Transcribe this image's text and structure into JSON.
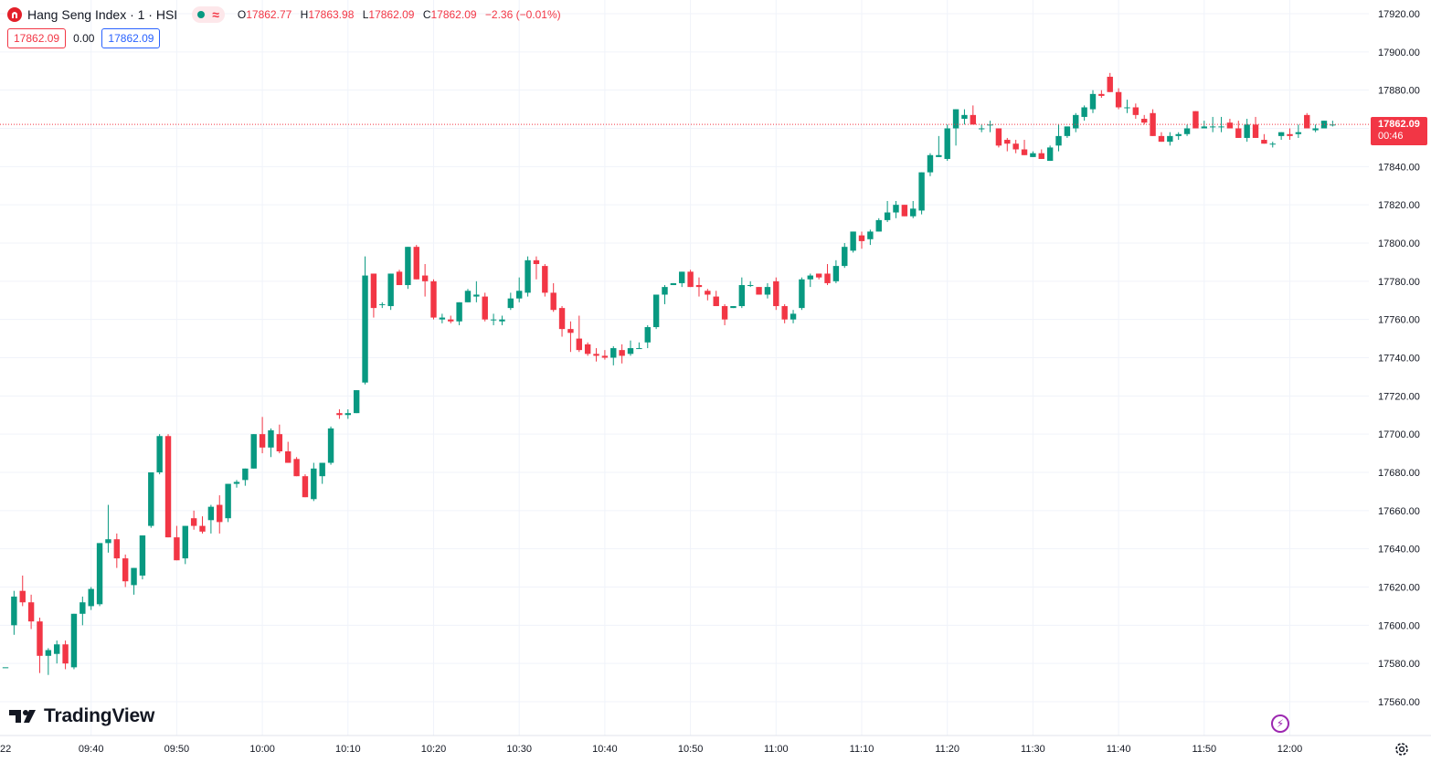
{
  "header": {
    "symbol_title": "Hang Seng Index · 1 · HSI",
    "ohlc": {
      "open_label": "O",
      "open": "17862.77",
      "high_label": "H",
      "high": "17863.98",
      "low_label": "L",
      "low": "17862.09",
      "close_label": "C",
      "close": "17862.09",
      "change": "−2.36 (−0.01%)"
    },
    "status_icon": "wave-icon"
  },
  "order_row": {
    "sell_price": "17862.09",
    "spread": "0.00",
    "buy_price": "17862.09"
  },
  "price_tag": {
    "price": "17862.09",
    "countdown": "00:46"
  },
  "branding": {
    "logo_text": "TradingView"
  },
  "colors": {
    "up": "#089981",
    "down": "#f23645",
    "grid": "#f0f3fa",
    "text": "#131722",
    "buy": "#2962ff"
  },
  "chart_data": {
    "type": "candlestick",
    "title": "Hang Seng Index · 1 · HSI",
    "interval": "1 minute",
    "y_ticks": [
      17560,
      17580,
      17600,
      17620,
      17640,
      17660,
      17680,
      17700,
      17720,
      17740,
      17760,
      17780,
      17800,
      17820,
      17840,
      17860,
      17880,
      17900,
      17920
    ],
    "y_tick_labels": [
      "17560.00",
      "17580.00",
      "17600.00",
      "17620.00",
      "17640.00",
      "17660.00",
      "17680.00",
      "17700.00",
      "17720.00",
      "17740.00",
      "17760.00",
      "17780.00",
      "17800.00",
      "17820.00",
      "17840.00",
      "17860.00",
      "17880.00",
      "17900.00",
      "17920.00"
    ],
    "ylim": [
      17550,
      17928
    ],
    "x_ticks": [
      "09:40",
      "09:50",
      "10:00",
      "10:10",
      "10:20",
      "10:30",
      "10:40",
      "10:50",
      "11:00",
      "11:10",
      "11:20",
      "11:30",
      "11:40",
      "11:50",
      "12:00"
    ],
    "first_label": "22",
    "last_price": 17862.09,
    "candles": [
      [
        17578,
        17578,
        17578,
        17578
      ],
      [
        17600,
        17618,
        17595,
        17615
      ],
      [
        17618,
        17626,
        17610,
        17612
      ],
      [
        17612,
        17616,
        17598,
        17602
      ],
      [
        17602,
        17604,
        17575,
        17584
      ],
      [
        17584,
        17588,
        17574,
        17587
      ],
      [
        17585,
        17592,
        17580,
        17590
      ],
      [
        17590,
        17592,
        17577,
        17580
      ],
      [
        17578,
        17606,
        17577,
        17606
      ],
      [
        17606,
        17615,
        17600,
        17612
      ],
      [
        17610,
        17620,
        17608,
        17619
      ],
      [
        17611,
        17643,
        17610,
        17643
      ],
      [
        17643,
        17663,
        17638,
        17645
      ],
      [
        17645,
        17648,
        17630,
        17635
      ],
      [
        17635,
        17637,
        17620,
        17623
      ],
      [
        17621,
        17630,
        17616,
        17630
      ],
      [
        17626,
        17647,
        17624,
        17647
      ],
      [
        17652,
        17680,
        17651,
        17680
      ],
      [
        17680,
        17700,
        17679,
        17699
      ],
      [
        17699,
        17700,
        17646,
        17646
      ],
      [
        17646,
        17652,
        17634,
        17634
      ],
      [
        17635,
        17652,
        17632,
        17652
      ],
      [
        17656,
        17660,
        17650,
        17652
      ],
      [
        17652,
        17657,
        17648,
        17649
      ],
      [
        17655,
        17663,
        17648,
        17662
      ],
      [
        17663,
        17668,
        17648,
        17654
      ],
      [
        17656,
        17674,
        17654,
        17674
      ],
      [
        17674,
        17676,
        17672,
        17675
      ],
      [
        17676,
        17682,
        17673,
        17682
      ],
      [
        17682,
        17700,
        17682,
        17700
      ],
      [
        17700,
        17709,
        17690,
        17693
      ],
      [
        17693,
        17703,
        17688,
        17702
      ],
      [
        17700,
        17705,
        17690,
        17691
      ],
      [
        17691,
        17696,
        17685,
        17685
      ],
      [
        17687,
        17688,
        17679,
        17678
      ],
      [
        17678,
        17679,
        17667,
        17667
      ],
      [
        17666,
        17685,
        17665,
        17682
      ],
      [
        17678,
        17685,
        17674,
        17685
      ],
      [
        17685,
        17704,
        17684,
        17703
      ],
      [
        17711,
        17713,
        17708,
        17710
      ],
      [
        17710,
        17713,
        17708,
        17711
      ],
      [
        17711,
        17723,
        17711,
        17723
      ],
      [
        17727,
        17793,
        17726,
        17783
      ],
      [
        17784,
        17784,
        17761,
        17766
      ],
      [
        17768,
        17769,
        17766,
        17768
      ],
      [
        17767,
        17784,
        17765,
        17784
      ],
      [
        17785,
        17786,
        17778,
        17778
      ],
      [
        17778,
        17798,
        17776,
        17798
      ],
      [
        17798,
        17799,
        17781,
        17781
      ],
      [
        17783,
        17789,
        17772,
        17780
      ],
      [
        17780,
        17781,
        17760,
        17761
      ],
      [
        17760,
        17763,
        17758,
        17761
      ],
      [
        17760,
        17762,
        17758,
        17759
      ],
      [
        17759,
        17768,
        17757,
        17769
      ],
      [
        17769,
        17776,
        17770,
        17775
      ],
      [
        17772,
        17780,
        17769,
        17773
      ],
      [
        17772,
        17774,
        17759,
        17760
      ],
      [
        17760,
        17763,
        17757,
        17760
      ],
      [
        17759,
        17762,
        17757,
        17760
      ],
      [
        17766,
        17774,
        17765,
        17771
      ],
      [
        17771,
        17782,
        17769,
        17775
      ],
      [
        17774,
        17793,
        17772,
        17791
      ],
      [
        17791,
        17793,
        17781,
        17789
      ],
      [
        17788,
        17789,
        17772,
        17774
      ],
      [
        17774,
        17779,
        17764,
        17765
      ],
      [
        17766,
        17767,
        17751,
        17755
      ],
      [
        17755,
        17759,
        17743,
        17753
      ],
      [
        17750,
        17762,
        17743,
        17744
      ],
      [
        17747,
        17748,
        17741,
        17742
      ],
      [
        17742,
        17745,
        17738,
        17741
      ],
      [
        17741,
        17744,
        17739,
        17740
      ],
      [
        17740,
        17746,
        17736,
        17745
      ],
      [
        17744,
        17747,
        17737,
        17741
      ],
      [
        17742,
        17749,
        17741,
        17745
      ],
      [
        17745,
        17748,
        17745,
        17745
      ],
      [
        17748,
        17757,
        17745,
        17756
      ],
      [
        17756,
        17773,
        17755,
        17773
      ],
      [
        17773,
        17778,
        17768,
        17777
      ],
      [
        17778,
        17778,
        17779,
        17779
      ],
      [
        17779,
        17785,
        17777,
        17785
      ],
      [
        17785,
        17786,
        17777,
        17777
      ],
      [
        17778,
        17782,
        17772,
        17777
      ],
      [
        17775,
        17776,
        17770,
        17773
      ],
      [
        17772,
        17775,
        17767,
        17767
      ],
      [
        17767,
        17768,
        17757,
        17760
      ],
      [
        17766,
        17767,
        17766,
        17767
      ],
      [
        17767,
        17782,
        17766,
        17778
      ],
      [
        17778,
        17780,
        17777,
        17778
      ],
      [
        17777,
        17777,
        17773,
        17773
      ],
      [
        17773,
        17779,
        17771,
        17777
      ],
      [
        17780,
        17782,
        17765,
        17767
      ],
      [
        17767,
        17768,
        17758,
        17760
      ],
      [
        17760,
        17765,
        17758,
        17763
      ],
      [
        17766,
        17782,
        17765,
        17781
      ],
      [
        17781,
        17784,
        17777,
        17783
      ],
      [
        17784,
        17784,
        17781,
        17782
      ],
      [
        17784,
        17789,
        17778,
        17779
      ],
      [
        17780,
        17791,
        17779,
        17788
      ],
      [
        17788,
        17800,
        17787,
        17798
      ],
      [
        17796,
        17806,
        17795,
        17806
      ],
      [
        17804,
        17806,
        17797,
        17801
      ],
      [
        17802,
        17807,
        17799,
        17806
      ],
      [
        17806,
        17813,
        17806,
        17812
      ],
      [
        17812,
        17822,
        17811,
        17816
      ],
      [
        17816,
        17822,
        17813,
        17820
      ],
      [
        17820,
        17820,
        17814,
        17814
      ],
      [
        17814,
        17822,
        17813,
        17818
      ],
      [
        17817,
        17836,
        17815,
        17837
      ],
      [
        17837,
        17847,
        17835,
        17846
      ],
      [
        17845,
        17856,
        17845,
        17846
      ],
      [
        17844,
        17862,
        17843,
        17860
      ],
      [
        17860,
        17870,
        17851,
        17870
      ],
      [
        17865,
        17870,
        17862,
        17867
      ],
      [
        17867,
        17872,
        17862,
        17862
      ],
      [
        17860,
        17862,
        17858,
        17860
      ],
      [
        17862,
        17864,
        17858,
        17862
      ],
      [
        17860,
        17857,
        17850,
        17851
      ],
      [
        17854,
        17855,
        17848,
        17852
      ],
      [
        17852,
        17854,
        17847,
        17849
      ],
      [
        17849,
        17854,
        17846,
        17846
      ],
      [
        17845,
        17848,
        17845,
        17847
      ],
      [
        17847,
        17849,
        17844,
        17844
      ],
      [
        17843,
        17851,
        17843,
        17850
      ],
      [
        17851,
        17862,
        17848,
        17856
      ],
      [
        17856,
        17861,
        17855,
        17861
      ],
      [
        17860,
        17868,
        17858,
        17867
      ],
      [
        17866,
        17872,
        17864,
        17871
      ],
      [
        17870,
        17880,
        17868,
        17878
      ],
      [
        17878,
        17880,
        17876,
        17877
      ],
      [
        17887,
        17889,
        17879,
        17879
      ],
      [
        17879,
        17881,
        17870,
        17871
      ],
      [
        17871,
        17875,
        17868,
        17871
      ],
      [
        17871,
        17873,
        17865,
        17867
      ],
      [
        17865,
        17867,
        17862,
        17863
      ],
      [
        17868,
        17870,
        17857,
        17856
      ],
      [
        17856,
        17858,
        17853,
        17853
      ],
      [
        17853,
        17858,
        17851,
        17856
      ],
      [
        17856,
        17858,
        17854,
        17857
      ],
      [
        17857,
        17862,
        17856,
        17860
      ],
      [
        17869,
        17869,
        17863,
        17860
      ],
      [
        17860,
        17864,
        17860,
        17861
      ],
      [
        17861,
        17866,
        17858,
        17861
      ],
      [
        17861,
        17866,
        17858,
        17861
      ],
      [
        17863,
        17865,
        17860,
        17860
      ],
      [
        17860,
        17864,
        17858,
        17855
      ],
      [
        17855,
        17865,
        17853,
        17862
      ],
      [
        17862,
        17866,
        17856,
        17855
      ],
      [
        17854,
        17857,
        17852,
        17852
      ],
      [
        17852,
        17853,
        17850,
        17852
      ],
      [
        17856,
        17858,
        17854,
        17858
      ],
      [
        17857,
        17860,
        17854,
        17856
      ],
      [
        17857,
        17862,
        17855,
        17858
      ],
      [
        17867,
        17868,
        17862,
        17860
      ],
      [
        17859,
        17862,
        17858,
        17860
      ],
      [
        17860,
        17864,
        17860,
        17864
      ],
      [
        17862,
        17864,
        17861,
        17862
      ]
    ]
  }
}
